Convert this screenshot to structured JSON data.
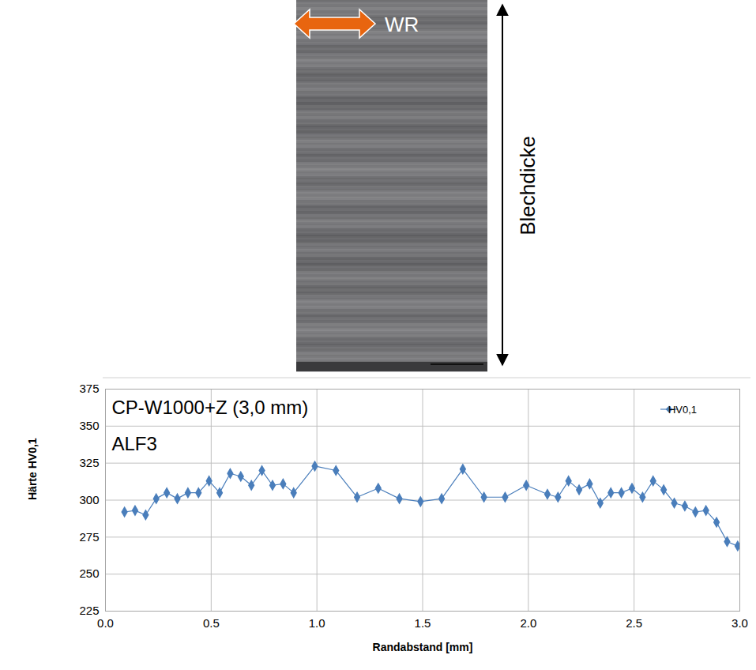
{
  "micrograph": {
    "direction_label": "WR",
    "thickness_label": "Blechdicke"
  },
  "chart_data": {
    "type": "line",
    "title": "CP-W1000+Z (3,0 mm)",
    "subtitle": "ALF3",
    "x_label": "Randabstand [mm]",
    "y_label": "Härte HV0,1",
    "x": [
      0.09,
      0.14,
      0.19,
      0.24,
      0.29,
      0.34,
      0.39,
      0.44,
      0.49,
      0.54,
      0.59,
      0.64,
      0.69,
      0.74,
      0.79,
      0.84,
      0.89,
      0.99,
      1.09,
      1.19,
      1.29,
      1.39,
      1.49,
      1.59,
      1.69,
      1.79,
      1.89,
      1.99,
      2.09,
      2.14,
      2.19,
      2.24,
      2.29,
      2.34,
      2.39,
      2.44,
      2.49,
      2.54,
      2.59,
      2.64,
      2.69,
      2.74,
      2.79,
      2.84,
      2.89,
      2.94,
      2.99
    ],
    "series": [
      {
        "name": "HV0,1",
        "color": "#4a7ebb",
        "marker": "diamond",
        "line_style": "solid",
        "values": [
          292,
          293,
          290,
          301,
          305,
          301,
          305,
          305,
          313,
          305,
          318,
          316,
          310,
          320,
          310,
          311,
          305,
          323,
          320,
          302,
          308,
          301,
          299,
          301,
          321,
          302,
          302,
          310,
          304,
          302,
          313,
          307,
          311,
          298,
          305,
          305,
          308,
          302,
          313,
          307,
          298,
          296,
          292,
          293,
          285,
          272,
          269
        ]
      }
    ],
    "xlim": [
      0,
      3
    ],
    "xticks": [
      {
        "value": 0,
        "label": "0.0"
      },
      {
        "value": 0.5,
        "label": "0.5"
      },
      {
        "value": 1,
        "label": "1.0"
      },
      {
        "value": 1.5,
        "label": "1.5"
      },
      {
        "value": 2,
        "label": "2.0"
      },
      {
        "value": 2.5,
        "label": "2.5"
      },
      {
        "value": 3,
        "label": "3.0"
      }
    ],
    "ylim": [
      225,
      375
    ],
    "yticks": [
      225,
      250,
      275,
      300,
      325,
      350,
      375
    ],
    "grid": true,
    "legend": "top-right"
  }
}
